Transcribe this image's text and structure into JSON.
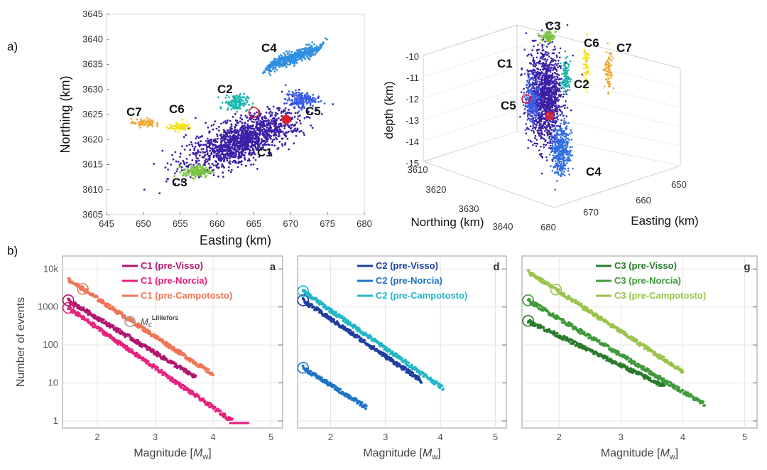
{
  "panel_labels": {
    "a": "a)",
    "b": "b)"
  },
  "chart_data": [
    {
      "id": "map",
      "type": "scatter",
      "title": "",
      "xlabel": "Easting (km)",
      "ylabel": "Northing (km)",
      "xlim": [
        645,
        680
      ],
      "ylim": [
        3605,
        3645
      ],
      "xticks": [
        "645",
        "650",
        "655",
        "660",
        "665",
        "670",
        "675",
        "680"
      ],
      "yticks": [
        "3605",
        "3610",
        "3615",
        "3620",
        "3625",
        "3630",
        "3635",
        "3640",
        "3645"
      ],
      "clusters": [
        {
          "name": "C1",
          "color": "#3b1fa6",
          "center": [
            663.5,
            3620.0
          ],
          "spread": [
            3.2,
            3.2
          ],
          "count": 1400
        },
        {
          "name": "C2",
          "color": "#20b8b0",
          "center": [
            662.6,
            3627.4
          ],
          "spread": [
            0.8,
            0.8
          ],
          "count": 140
        },
        {
          "name": "C3",
          "color": "#7cc242",
          "center": [
            657.2,
            3613.6
          ],
          "spread": [
            0.9,
            0.6
          ],
          "count": 140
        },
        {
          "name": "C4",
          "color": "#2f8fe0",
          "center": [
            670.5,
            3636.5
          ],
          "spread": [
            2.6,
            1.2
          ],
          "count": 500
        },
        {
          "name": "C5",
          "color": "#3a5ee8",
          "center": [
            671.3,
            3628.0
          ],
          "spread": [
            1.0,
            0.8
          ],
          "count": 160
        },
        {
          "name": "C6",
          "color": "#f2e20a",
          "center": [
            655.0,
            3622.5
          ],
          "spread": [
            0.8,
            0.4
          ],
          "count": 70
        },
        {
          "name": "C7",
          "color": "#f0a833",
          "center": [
            650.0,
            3623.3
          ],
          "spread": [
            0.8,
            0.4
          ],
          "count": 70
        }
      ],
      "mainshocks": [
        {
          "x": 665.0,
          "y": 3625.4,
          "style": "open",
          "color": "#e0202a"
        },
        {
          "x": 669.4,
          "y": 3624.0,
          "style": "filled",
          "color": "#e0202a"
        }
      ]
    },
    {
      "id": "map3d",
      "type": "scatter",
      "title": "",
      "xlabel": "Easting (km)",
      "ylabel": "Northing (km)",
      "zlabel": "depth (km)",
      "zticks": [
        "-10",
        "-11",
        "-12",
        "-13",
        "-14",
        "-15"
      ],
      "northing_ticks": [
        "3610",
        "3620",
        "3630",
        "3640"
      ],
      "easting_ticks": [
        "650",
        "660",
        "670",
        "680"
      ],
      "cluster_labels": [
        "C1",
        "C2",
        "C3",
        "C4",
        "C5",
        "C6",
        "C7"
      ]
    },
    {
      "id": "fmd-c1",
      "type": "line",
      "panel_letter": "a",
      "xlabel": "Magnitude [Mw]",
      "ylabel": "Number of events",
      "xlim": [
        1.4,
        5.2
      ],
      "ylog": true,
      "xticks": [
        "2",
        "3",
        "4",
        "5"
      ],
      "yticks": [
        "1",
        "10",
        "100",
        "1000",
        "10k"
      ],
      "legend_mc": "Mc",
      "legend_mc_sup": "Lilliefors",
      "series": [
        {
          "name": "C1 (pre-Visso)",
          "color": "#b0166e",
          "max_count": 1500,
          "b": 0.92,
          "tail_mag": 3.7,
          "mc": 1.5
        },
        {
          "name": "C1 (pre-Norcia)",
          "color": "#e8207e",
          "max_count": 950,
          "b": 1.05,
          "tail_mag": 4.6,
          "mc": 1.5
        },
        {
          "name": "C1 (pre-Campotosto)",
          "color": "#ef7556",
          "max_count": 5300,
          "b": 1.0,
          "tail_mag": 4.0,
          "mc": 1.75
        }
      ]
    },
    {
      "id": "fmd-c2",
      "type": "line",
      "panel_letter": "d",
      "xlabel": "Magnitude [Mw]",
      "xlim": [
        1.4,
        5.2
      ],
      "ylog": true,
      "xticks": [
        "2",
        "3",
        "4",
        "5"
      ],
      "series": [
        {
          "name": "C2 (pre-Visso)",
          "color": "#1f3fa0",
          "max_count": 1500,
          "b": 0.98,
          "tail_mag": 3.65,
          "mc": 1.5
        },
        {
          "name": "C2 (pre-Norcia)",
          "color": "#1d72c4",
          "max_count": 25,
          "b": 0.9,
          "tail_mag": 2.65,
          "mc": 1.5
        },
        {
          "name": "C2 (pre-Campotosto)",
          "color": "#22b7c9",
          "max_count": 2600,
          "b": 1.0,
          "tail_mag": 4.05,
          "mc": 1.5
        }
      ]
    },
    {
      "id": "fmd-c3",
      "type": "line",
      "panel_letter": "g",
      "xlabel": "Magnitude [Mw]",
      "xlim": [
        1.4,
        5.2
      ],
      "ylog": true,
      "xticks": [
        "2",
        "3",
        "4",
        "5"
      ],
      "series": [
        {
          "name": "C3 (pre-Visso)",
          "color": "#2a7a2c",
          "max_count": 430,
          "b": 0.78,
          "tail_mag": 3.7,
          "mc": 1.5
        },
        {
          "name": "C3 (pre-Norcia)",
          "color": "#3f9a3a",
          "max_count": 1500,
          "b": 0.96,
          "tail_mag": 4.35,
          "mc": 1.5
        },
        {
          "name": "C3 (pre-Campotosto)",
          "color": "#9bc24a",
          "max_count": 8500,
          "b": 1.05,
          "tail_mag": 4.0,
          "mc": 1.95
        }
      ]
    }
  ]
}
